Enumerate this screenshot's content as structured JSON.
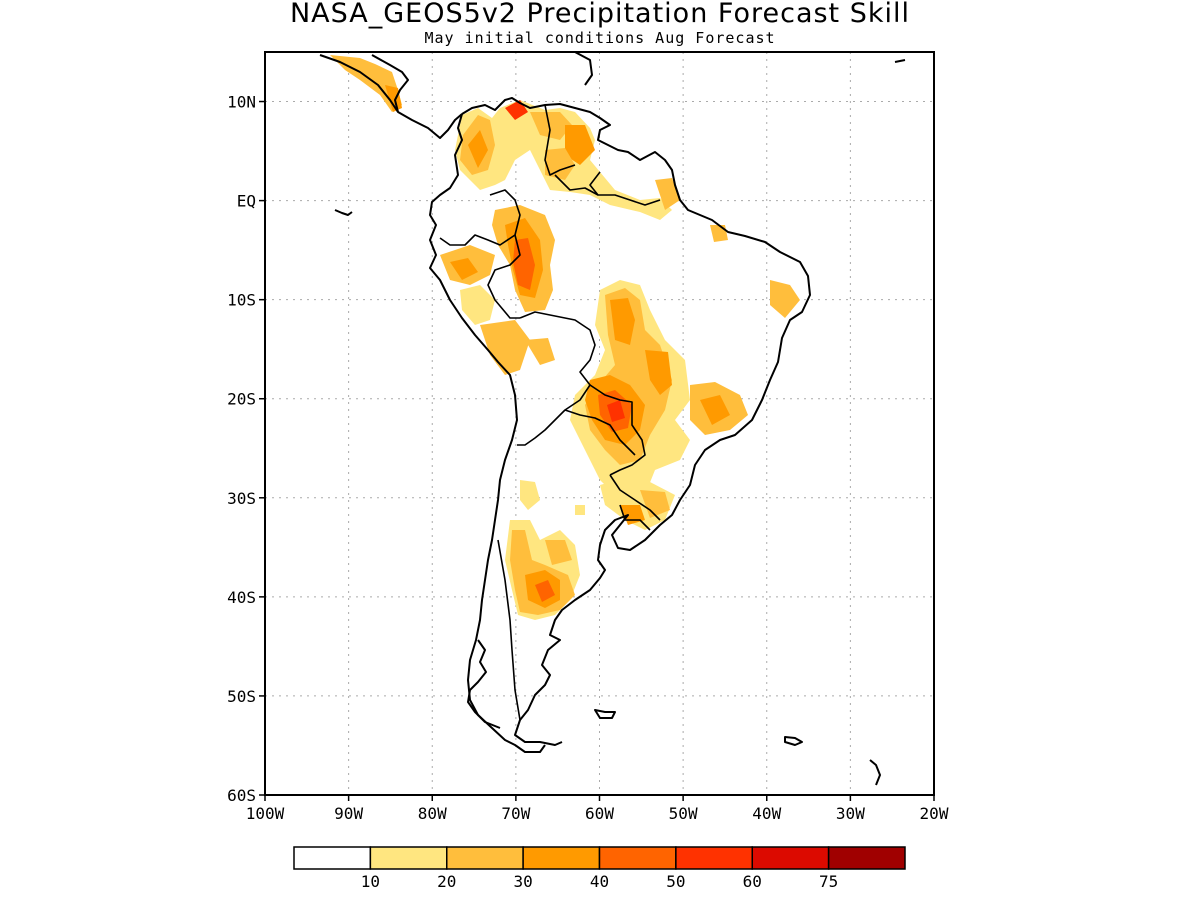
{
  "title": "NASA_GEOS5v2 Precipitation Forecast Skill",
  "subtitle": "May initial conditions  Aug Forecast",
  "map": {
    "region": "South America",
    "lon_range": [
      -100,
      -20
    ],
    "lat_range": [
      -60,
      15
    ],
    "gridlines": "dotted",
    "x_tick_labels": [
      "100W",
      "90W",
      "80W",
      "70W",
      "60W",
      "50W",
      "40W",
      "30W",
      "20W"
    ],
    "y_tick_labels": [
      "10N",
      "EQ",
      "10S",
      "20S",
      "30S",
      "40S",
      "50S",
      "60S"
    ]
  },
  "colorbar": {
    "labels": [
      "10",
      "20",
      "30",
      "40",
      "50",
      "60",
      "75"
    ],
    "colors": [
      "#ffffff",
      "#ffe680",
      "#ffbe3c",
      "#ff9a00",
      "#ff6400",
      "#ff3200",
      "#dc0a00",
      "#a00000"
    ]
  }
}
